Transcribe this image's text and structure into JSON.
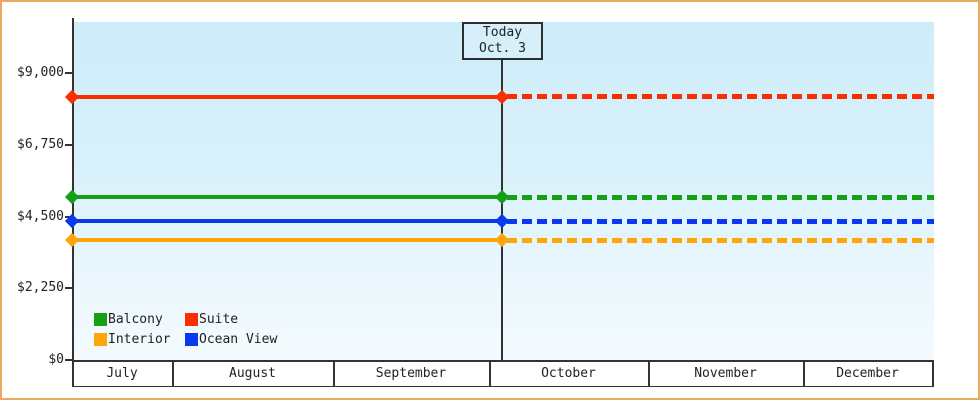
{
  "chart_data": {
    "type": "line",
    "description": "Cabin price chart by category over months; lines solid up to today, dotted projection after",
    "ylim": [
      0,
      9000
    ],
    "yticks": [
      0,
      2250,
      4500,
      6750,
      9000
    ],
    "ytick_labels": [
      "$0",
      "$2,250",
      "$4,500",
      "$6,750",
      "$9,000"
    ],
    "months": [
      "July",
      "August",
      "September",
      "October",
      "November",
      "December"
    ],
    "month_boundaries_fraction": [
      0,
      0.1163,
      0.3035,
      0.4849,
      0.6698,
      0.85,
      1
    ],
    "annotation": {
      "line1": "Today",
      "line2": "Oct. 3",
      "x_fraction": 0.4977
    },
    "series": [
      {
        "name": "Suite",
        "value_usd": 8250,
        "color": "#fa2f00"
      },
      {
        "name": "Balcony",
        "value_usd": 5100,
        "color": "#15a015"
      },
      {
        "name": "Ocean View",
        "value_usd": 4350,
        "color": "#0838ef"
      },
      {
        "name": "Interior",
        "value_usd": 3750,
        "color": "#ffa40a"
      }
    ],
    "legend": {
      "position": "bottom-left",
      "items": [
        {
          "label": "Balcony",
          "color": "#15a015"
        },
        {
          "label": "Suite",
          "color": "#fa2f00"
        },
        {
          "label": "Interior",
          "color": "#ffa40a"
        },
        {
          "label": "Ocean View",
          "color": "#0838ef"
        }
      ]
    },
    "styles": {
      "frame_border": "#eaa95e",
      "axis_color": "#333333",
      "plot_bg_top": "#cdedfa",
      "plot_bg_bottom": "#f4fbfe",
      "text_color": "#222222"
    }
  }
}
